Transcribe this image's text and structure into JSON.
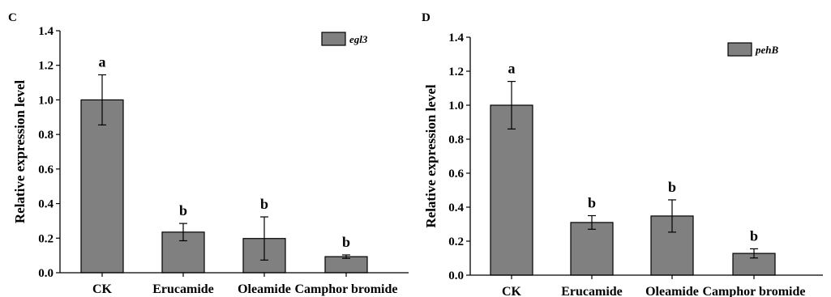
{
  "chart_data": [
    {
      "panel": "C",
      "type": "bar",
      "categories": [
        "CK",
        "Erucamide",
        "Oleamide",
        "Camphor bromide"
      ],
      "series": [
        {
          "name": "egl3",
          "values": [
            1.0,
            0.235,
            0.198,
            0.093
          ],
          "error": [
            0.145,
            0.05,
            0.125,
            0.01
          ],
          "significance": [
            "a",
            "b",
            "b",
            "b"
          ]
        }
      ],
      "ylabel": "Relative expression level",
      "xlabel": "",
      "ylim": [
        0,
        1.4
      ],
      "yticks": [
        "0.0",
        "0.2",
        "0.4",
        "0.6",
        "0.8",
        "1.0",
        "1.2",
        "1.4"
      ],
      "legend": "top-right",
      "grid": false
    },
    {
      "panel": "D",
      "type": "bar",
      "categories": [
        "CK",
        "Erucamide",
        "Oleamide",
        "Camphor bromide"
      ],
      "series": [
        {
          "name": "pehB",
          "values": [
            1.0,
            0.31,
            0.348,
            0.128
          ],
          "error": [
            0.14,
            0.04,
            0.095,
            0.027
          ],
          "significance": [
            "a",
            "b",
            "b",
            "b"
          ]
        }
      ],
      "ylabel": "Relative expression level",
      "xlabel": "",
      "ylim": [
        0,
        1.4
      ],
      "yticks": [
        "0.0",
        "0.2",
        "0.4",
        "0.6",
        "0.8",
        "1.0",
        "1.2",
        "1.4"
      ],
      "legend": "top-right",
      "grid": false
    }
  ],
  "colors": {
    "bar": "#808080",
    "axis": "#000000"
  }
}
